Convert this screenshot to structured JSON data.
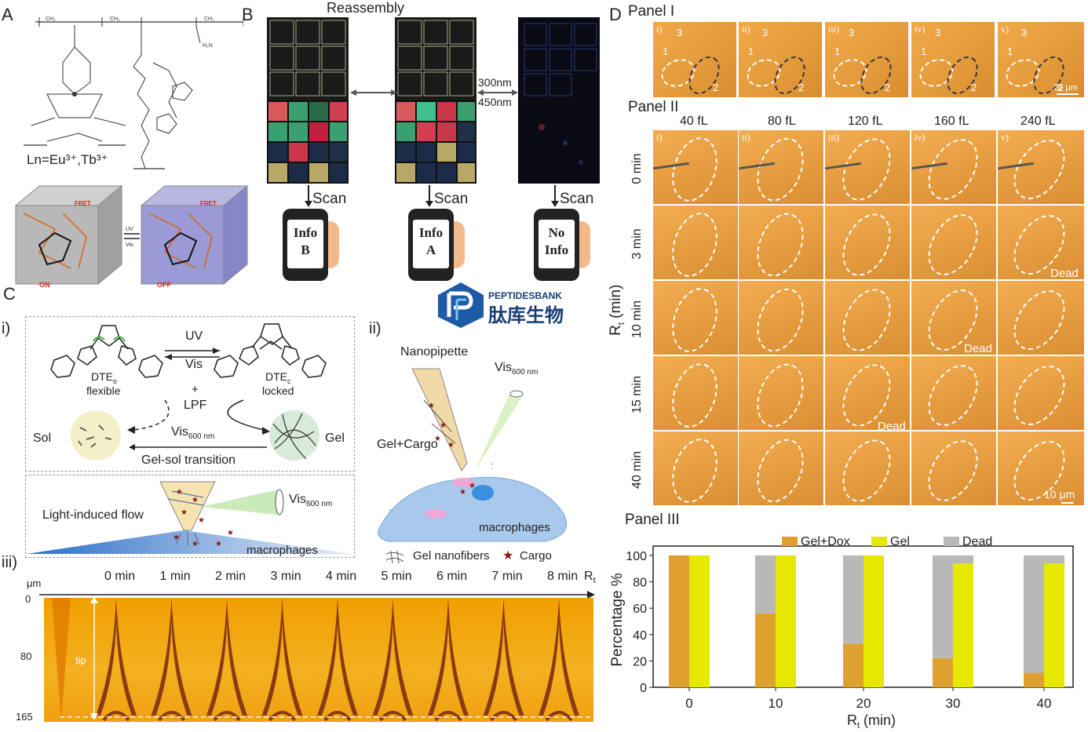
{
  "panelA": {
    "letter": "A",
    "ln_label": "Ln=Eu³⁺,Tb³⁺",
    "fret": "FRET",
    "uv": "UV",
    "vis": "Vis",
    "on": "ON",
    "off": "OFF"
  },
  "panelB": {
    "letter": "B",
    "reassembly": "Reassembly",
    "nm300": "300nm",
    "nm450": "450nm",
    "scan": "Scan",
    "phones": [
      {
        "line1": "Info",
        "line2": "B"
      },
      {
        "line1": "Info",
        "line2": "A"
      },
      {
        "line1": "No",
        "line2": "Info"
      }
    ]
  },
  "watermark": {
    "brand": "PEPTIDESBANK",
    "chinese": "肽库生物"
  },
  "panelC": {
    "letter": "C",
    "i": "i)",
    "ii": "ii)",
    "iii": "iii)",
    "uv": "UV",
    "vis": "Vis",
    "dte_o": "DTE",
    "dte_o_sub": "o",
    "dte_o_desc": "flexible",
    "dte_c": "DTE",
    "dte_c_sub": "c",
    "dte_c_desc": "locked",
    "plus": "+",
    "lpf": "LPF",
    "sol": "Sol",
    "gel": "Gel",
    "vis600": "Vis",
    "vis600_sub": "600 nm",
    "gelsol": "Gel-sol transition",
    "light_flow": "Light-induced flow",
    "macrophages": "macrophages",
    "nanopipette": "Nanopipette",
    "gel_cargo": "Gel+Cargo",
    "macrophages2": "macrophages",
    "legend_nanofibers": "Gel nanofibers",
    "legend_cargo": "Cargo",
    "um": "μm",
    "times": [
      "0 min",
      "1 min",
      "2 min",
      "3 min",
      "4 min",
      "5 min",
      "6 min",
      "7 min",
      "8 min"
    ],
    "rt": "R",
    "rt_sub": "t",
    "y_ticks": [
      "0",
      "80",
      "165"
    ],
    "tip": "tip"
  },
  "panelD": {
    "letter": "D",
    "panel1": "Panel I",
    "panel2": "Panel II",
    "panel3": "Panel III",
    "roman": [
      "i)",
      "ii)",
      "iii)",
      "iv)",
      "v)"
    ],
    "p1_nums": [
      "1",
      "2",
      "3"
    ],
    "p1_scale": "20 μm",
    "volumes": [
      "40 fL",
      "80 fL",
      "120 fL",
      "160 fL",
      "240 fL"
    ],
    "row_times": [
      "0 min",
      "3 min",
      "10 min",
      "15 min",
      "40 min"
    ],
    "row_axis": "R",
    "row_axis_sub": "t",
    "row_axis_unit": " (min)",
    "dead": "Dead",
    "p2_scale": "10 μm"
  },
  "chart_data": {
    "type": "bar",
    "categories": [
      "0",
      "10",
      "20",
      "30",
      "40"
    ],
    "series": [
      {
        "name": "Gel+Dox",
        "color": "#e0a030",
        "values": [
          100,
          56,
          33,
          22,
          11
        ]
      },
      {
        "name": "Gel",
        "color": "#e6e800",
        "values": [
          100,
          100,
          100,
          94,
          94
        ]
      },
      {
        "name": "Dead",
        "color": "#b8b8b8",
        "values": [
          0,
          44,
          67,
          78,
          89
        ]
      }
    ],
    "stacks": "Dead stacked on Gel+Dox; Gel shown to 100 with small Dead cap at 30 and 40",
    "xlabel": "R",
    "xlabel_sub": "t",
    "xlabel_unit": " (min)",
    "ylabel": "Percentage %",
    "ylim": [
      0,
      100
    ],
    "yticks": [
      "0",
      "20",
      "40",
      "60",
      "80",
      "100"
    ],
    "legend_position": "top-right"
  }
}
